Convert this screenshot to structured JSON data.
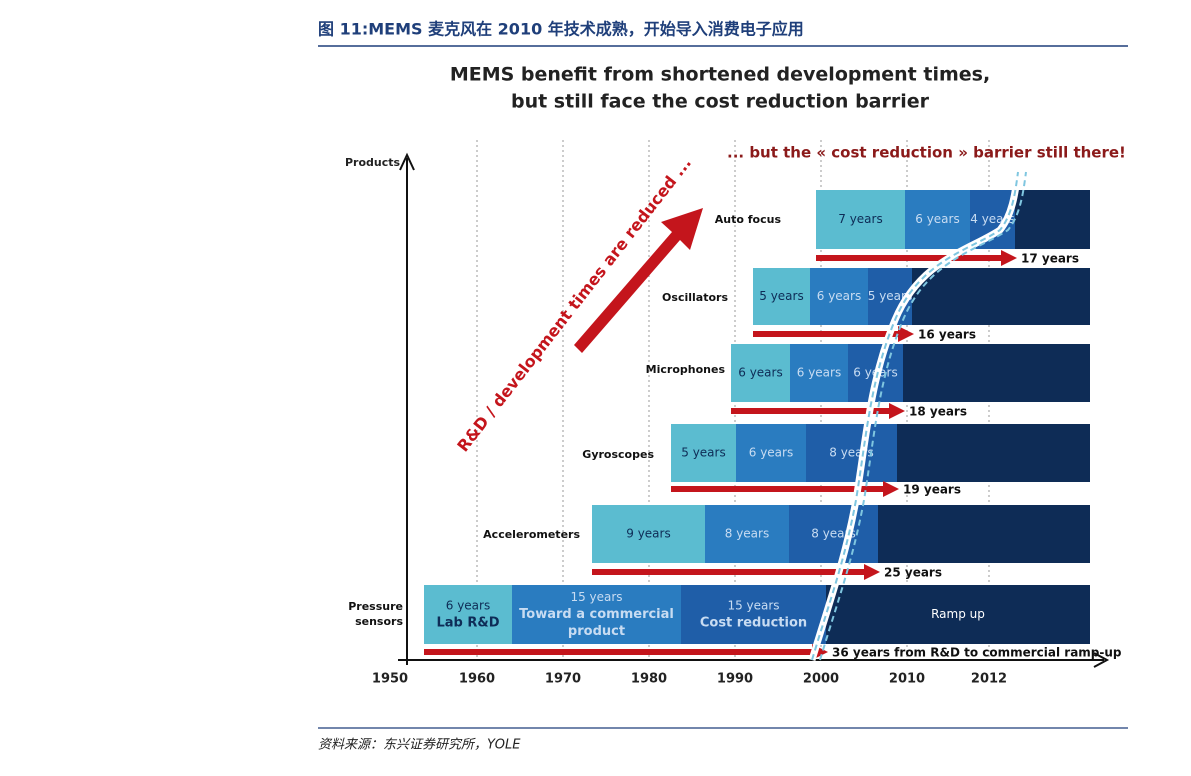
{
  "header": {
    "title": "图 11:MEMS 麦克风在 2010 年技术成熟，开始导入消费电子应用"
  },
  "figure": {
    "title": [
      "MEMS benefit from shortened development times,",
      "but still face the cost reduction barrier"
    ],
    "y_axis_label": "Products",
    "diagonal_label": "R&D / development times are reduced ...",
    "barrier_label": "... but the « cost reduction » barrier still there!",
    "x_labels": [
      "1950",
      "1960",
      "1970",
      "1980",
      "1990",
      "2000",
      "2010",
      "2012"
    ],
    "rows": [
      {
        "label": [
          "Auto focus"
        ],
        "segments": [
          {
            "lines": [
              "7 years"
            ]
          },
          {
            "lines": [
              "6 years"
            ]
          },
          {
            "lines": [
              "4 years"
            ]
          }
        ],
        "total": "17 years"
      },
      {
        "label": [
          "Oscillators"
        ],
        "segments": [
          {
            "lines": [
              "5 years"
            ]
          },
          {
            "lines": [
              "6 years"
            ]
          },
          {
            "lines": [
              "5 years"
            ]
          }
        ],
        "total": "16 years"
      },
      {
        "label": [
          "Microphones"
        ],
        "segments": [
          {
            "lines": [
              "6 years"
            ]
          },
          {
            "lines": [
              "6 years"
            ]
          },
          {
            "lines": [
              "6 years"
            ]
          }
        ],
        "total": "18 years"
      },
      {
        "label": [
          "Gyroscopes"
        ],
        "segments": [
          {
            "lines": [
              "5 years"
            ]
          },
          {
            "lines": [
              "6 years"
            ]
          },
          {
            "lines": [
              "8 years"
            ]
          }
        ],
        "total": "19 years"
      },
      {
        "label": [
          "Accelerometers"
        ],
        "segments": [
          {
            "lines": [
              "9 years"
            ]
          },
          {
            "lines": [
              "8 years"
            ]
          },
          {
            "lines": [
              "8 years"
            ]
          }
        ],
        "total": "25 years"
      },
      {
        "label": [
          "Pressure",
          "sensors"
        ],
        "segments": [
          {
            "lines": [
              "6 years",
              "Lab R&D"
            ]
          },
          {
            "lines": [
              "15 years",
              "Toward a commercial",
              "product"
            ]
          },
          {
            "lines": [
              "15 years",
              "Cost reduction"
            ]
          },
          {
            "lines": [
              "Ramp up"
            ]
          }
        ],
        "total": "36 years from R&D to commercial ramp-up"
      }
    ]
  },
  "footer": {
    "source": "资料来源：东兴证券研究所，YOLE"
  }
}
